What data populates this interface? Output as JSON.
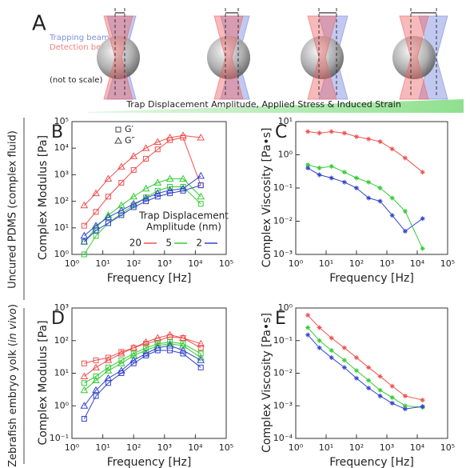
{
  "panel_a": {
    "label": "A",
    "trapping": "Trapping beam",
    "detection": "Detection beam",
    "note": "(not to scale)",
    "bar_text": "Trap Displacement Amplitude, Applied Stress & Induced Strain"
  },
  "row_labels": [
    [
      "Uncured PDMS (complex fluid)"
    ],
    [
      "Zebrafish embryo yolk (",
      "in vivo",
      ")"
    ]
  ],
  "chart_data": [
    {
      "type": "line",
      "label": "B",
      "xlabel": "Frequency [Hz]",
      "ylabel": "Complex Modulus [Pa]",
      "log": true,
      "x": [
        2.5,
        6,
        15,
        40,
        100,
        250,
        600,
        1500,
        4000,
        15000
      ],
      "xlim": [
        1,
        100000
      ],
      "xticks": [
        {
          "value": 1,
          "label": "10⁰"
        },
        {
          "value": 10,
          "label": "10¹"
        },
        {
          "value": 100,
          "label": "10²"
        },
        {
          "value": 1000,
          "label": "10³"
        },
        {
          "value": 10000,
          "label": "10⁴"
        },
        {
          "value": 100000,
          "label": "10⁵"
        }
      ],
      "ylim": [
        1,
        100000
      ],
      "yticks": [
        {
          "value": 1,
          "label": "10⁰"
        },
        {
          "value": 10,
          "label": "10¹"
        },
        {
          "value": 100,
          "label": "10²"
        },
        {
          "value": 1000,
          "label": "10³"
        },
        {
          "value": 10000,
          "label": "10⁴"
        },
        {
          "value": 100000,
          "label": "10⁵"
        }
      ],
      "marker_legend": [
        {
          "label": "G′",
          "marker": "square"
        },
        {
          "label": "G″",
          "marker": "triangle"
        }
      ],
      "legend": {
        "title": [
          "Trap Displacement",
          "Amplitude (nm)"
        ],
        "entries": [
          {
            "label": "20",
            "color": "#f05050"
          },
          {
            "label": "5",
            "color": "#33cc33"
          },
          {
            "label": "2",
            "color": "#3344cc"
          }
        ]
      },
      "series": [
        {
          "color": "#f05050",
          "marker": "square",
          "values": [
            12,
            40,
            150,
            500,
            1500,
            4000,
            9000,
            20000,
            25000,
            400
          ]
        },
        {
          "color": "#f05050",
          "marker": "triangle",
          "values": [
            70,
            200,
            700,
            2000,
            5000,
            10000,
            17000,
            25000,
            30000,
            25000
          ]
        },
        {
          "color": "#33cc33",
          "marker": "square",
          "values": [
            1,
            5,
            15,
            35,
            70,
            140,
            250,
            350,
            350,
            80
          ]
        },
        {
          "color": "#33cc33",
          "marker": "triangle",
          "values": [
            3,
            10,
            30,
            70,
            150,
            300,
            500,
            700,
            700,
            150
          ]
        },
        {
          "color": "#3344cc",
          "marker": "square",
          "values": [
            3,
            8,
            15,
            30,
            60,
            100,
            150,
            200,
            250,
            400
          ]
        },
        {
          "color": "#3344cc",
          "marker": "triangle",
          "values": [
            5,
            12,
            25,
            45,
            80,
            130,
            200,
            260,
            300,
            900
          ]
        }
      ]
    },
    {
      "type": "line",
      "label": "C",
      "xlabel": "Frequency [Hz]",
      "ylabel": "Complex Viscosity [Pa•s]",
      "log": true,
      "x": [
        2.5,
        6,
        15,
        40,
        100,
        250,
        600,
        1500,
        4000,
        15000
      ],
      "xlim": [
        1,
        100000
      ],
      "xticks": [
        {
          "value": 1,
          "label": "10⁰"
        },
        {
          "value": 10,
          "label": "10¹"
        },
        {
          "value": 100,
          "label": "10²"
        },
        {
          "value": 1000,
          "label": "10³"
        },
        {
          "value": 10000,
          "label": "10⁴"
        },
        {
          "value": 100000,
          "label": "10⁵"
        }
      ],
      "ylim": [
        0.001,
        10
      ],
      "yticks": [
        {
          "value": 0.001,
          "label": "10⁻³"
        },
        {
          "value": 0.01,
          "label": "10⁻²"
        },
        {
          "value": 0.1,
          "label": "10⁻¹"
        },
        {
          "value": 1,
          "label": "10⁰"
        },
        {
          "value": 10,
          "label": "10¹"
        }
      ],
      "series": [
        {
          "color": "#f05050",
          "marker": "asterisk",
          "values": [
            5,
            4.5,
            5,
            4.5,
            3.5,
            3,
            2.5,
            1.5,
            0.8,
            0.3
          ]
        },
        {
          "color": "#33cc33",
          "marker": "asterisk",
          "values": [
            0.5,
            0.4,
            0.45,
            0.3,
            0.2,
            0.15,
            0.1,
            0.05,
            0.02,
            0.0015
          ]
        },
        {
          "color": "#3344cc",
          "marker": "asterisk",
          "values": [
            0.4,
            0.25,
            0.2,
            0.15,
            0.1,
            0.05,
            0.04,
            0.015,
            0.005,
            0.012
          ]
        }
      ]
    },
    {
      "type": "line",
      "label": "D",
      "xlabel": "Frequency [Hz]",
      "ylabel": "Complex Modulus [Pa]",
      "log": true,
      "x": [
        2.5,
        6,
        15,
        40,
        100,
        250,
        600,
        1500,
        4000,
        15000
      ],
      "xlim": [
        1,
        100000
      ],
      "xticks": [
        {
          "value": 1,
          "label": "10⁰"
        },
        {
          "value": 10,
          "label": "10¹"
        },
        {
          "value": 100,
          "label": "10²"
        },
        {
          "value": 1000,
          "label": "10³"
        },
        {
          "value": 10000,
          "label": "10⁴"
        },
        {
          "value": 100000,
          "label": "10⁵"
        }
      ],
      "ylim": [
        0.1,
        1000
      ],
      "yticks": [
        {
          "value": 0.1,
          "label": "10⁻¹"
        },
        {
          "value": 1,
          "label": "10⁰"
        },
        {
          "value": 10,
          "label": "10¹"
        },
        {
          "value": 100,
          "label": "10²"
        },
        {
          "value": 1000,
          "label": "10³"
        }
      ],
      "series": [
        {
          "color": "#f05050",
          "marker": "square",
          "values": [
            20,
            25,
            30,
            45,
            60,
            80,
            100,
            130,
            120,
            60
          ]
        },
        {
          "color": "#f05050",
          "marker": "triangle",
          "values": [
            8,
            15,
            25,
            40,
            60,
            90,
            120,
            150,
            120,
            80
          ]
        },
        {
          "color": "#33cc33",
          "marker": "square",
          "values": [
            5,
            8,
            15,
            25,
            40,
            60,
            80,
            90,
            80,
            40
          ]
        },
        {
          "color": "#33cc33",
          "marker": "triangle",
          "values": [
            3,
            6,
            12,
            20,
            35,
            50,
            70,
            80,
            70,
            30
          ]
        },
        {
          "color": "#3344cc",
          "marker": "square",
          "values": [
            0.4,
            2,
            5,
            10,
            20,
            35,
            50,
            50,
            40,
            15
          ]
        },
        {
          "color": "#3344cc",
          "marker": "triangle",
          "values": [
            1,
            3,
            7,
            12,
            25,
            40,
            60,
            70,
            50,
            25
          ]
        }
      ]
    },
    {
      "type": "line",
      "label": "E",
      "xlabel": "Frequency [Hz]",
      "ylabel": "Complex Viscosity [Pa•s]",
      "log": true,
      "x": [
        2.5,
        6,
        15,
        40,
        100,
        250,
        600,
        1500,
        4000,
        15000
      ],
      "xlim": [
        1,
        100000
      ],
      "xticks": [
        {
          "value": 1,
          "label": "10⁰"
        },
        {
          "value": 10,
          "label": "10¹"
        },
        {
          "value": 100,
          "label": "10²"
        },
        {
          "value": 1000,
          "label": "10³"
        },
        {
          "value": 10000,
          "label": "10⁴"
        },
        {
          "value": 100000,
          "label": "10⁵"
        }
      ],
      "ylim": [
        0.0001,
        1
      ],
      "yticks": [
        {
          "value": 0.0001,
          "label": "10⁻⁴"
        },
        {
          "value": 0.001,
          "label": "10⁻³"
        },
        {
          "value": 0.01,
          "label": "10⁻²"
        },
        {
          "value": 0.1,
          "label": "10⁻¹"
        },
        {
          "value": 1,
          "label": "10⁰"
        }
      ],
      "series": [
        {
          "color": "#f05050",
          "marker": "asterisk",
          "values": [
            0.6,
            0.25,
            0.12,
            0.06,
            0.03,
            0.015,
            0.008,
            0.004,
            0.002,
            0.0015
          ]
        },
        {
          "color": "#33cc33",
          "marker": "asterisk",
          "values": [
            0.25,
            0.1,
            0.05,
            0.025,
            0.012,
            0.006,
            0.003,
            0.0018,
            0.001,
            0.0009
          ]
        },
        {
          "color": "#3344cc",
          "marker": "asterisk",
          "values": [
            0.15,
            0.06,
            0.03,
            0.015,
            0.007,
            0.0035,
            0.002,
            0.0012,
            0.0008,
            0.00095
          ]
        }
      ]
    }
  ]
}
